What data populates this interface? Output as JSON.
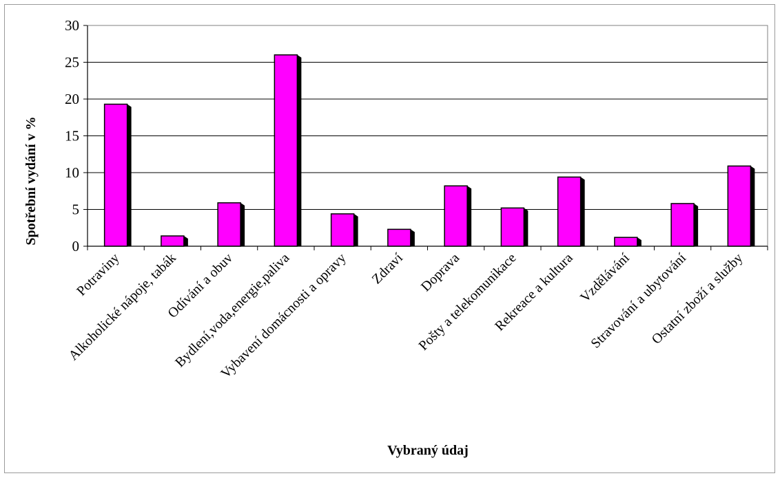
{
  "chart_data": {
    "type": "bar",
    "title": "",
    "xlabel": "Vybraný údaj",
    "ylabel": "Spotřební vydání v %",
    "ylim": [
      0,
      30
    ],
    "yticks": [
      "0",
      "5",
      "10",
      "15",
      "20",
      "25",
      "30"
    ],
    "grid": true,
    "legend": "none",
    "categories": [
      "Potraviny",
      "Alkoholické nápoje, tabák",
      "Odívání a obuv",
      "Bydlení,voda,energie,paliva",
      "Vybavení domácnosti a opravy",
      "Zdraví",
      "Doprava",
      "Pošty a telekomunikace",
      "Rekreace a kultura",
      "Vzdělávání",
      "Stravování a ubytování",
      "Ostatní zboží a služby"
    ],
    "values": [
      19.3,
      1.4,
      5.9,
      26.0,
      4.4,
      2.3,
      8.2,
      5.2,
      9.4,
      1.2,
      5.8,
      10.9
    ],
    "colors": {
      "bar": "#FF00FF",
      "shadow": "#000000",
      "grid": "#000000",
      "axis": "#808080"
    }
  }
}
